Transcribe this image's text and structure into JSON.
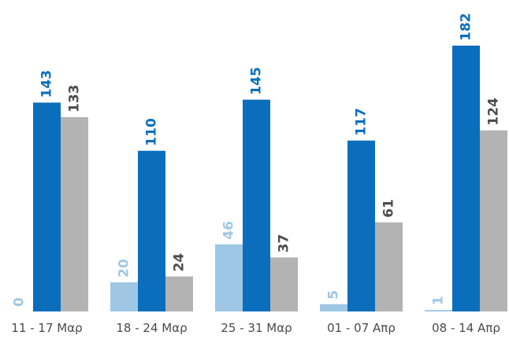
{
  "chart_data": {
    "type": "bar",
    "categories": [
      "11 - 17 Μαρ",
      "18 - 24 Μαρ",
      "25 - 31 Μαρ",
      "01 - 07 Απρ",
      "08 - 14 Απρ"
    ],
    "series": [
      {
        "values": [
          0,
          20,
          46,
          5,
          1
        ],
        "color": "#9fc7e5"
      },
      {
        "values": [
          143,
          110,
          145,
          117,
          182
        ],
        "color": "#0a6ebd"
      },
      {
        "values": [
          133,
          24,
          37,
          61,
          124
        ],
        "color": "#b3b3b3"
      }
    ],
    "ylim": [
      0,
      182
    ],
    "grid": false,
    "legend": "none",
    "data_labels": "rotated-vertical"
  }
}
